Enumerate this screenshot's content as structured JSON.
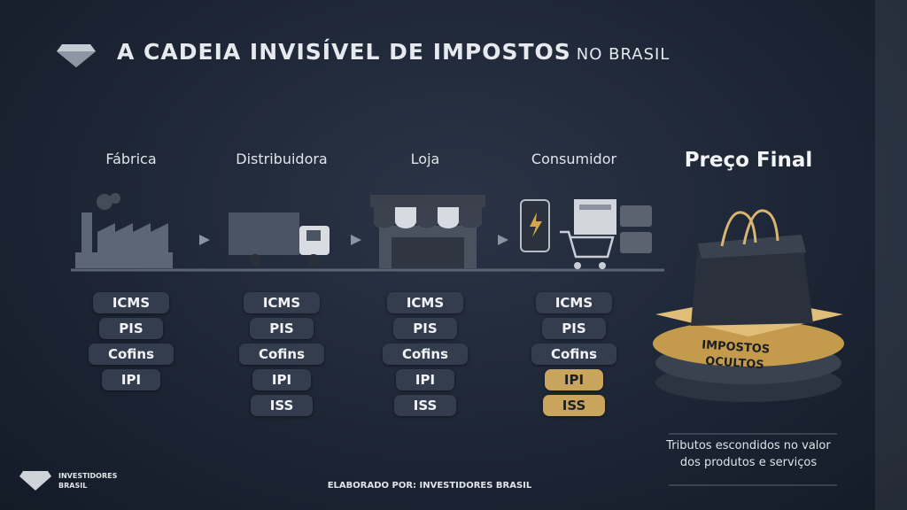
{
  "header": {
    "title_main": "A CADEIA INVISÍVEL DE IMPOSTOS",
    "title_suffix": "NO BRASIL"
  },
  "stages": [
    {
      "label": "Fábrica",
      "taxes": [
        "ICMS",
        "PIS",
        "Cofins",
        "IPI"
      ]
    },
    {
      "label": "Distribuidora",
      "taxes": [
        "ICMS",
        "PIS",
        "Cofins",
        "IPI",
        "ISS"
      ]
    },
    {
      "label": "Loja",
      "taxes": [
        "ICMS",
        "PIS",
        "Cofins",
        "IPI",
        "ISS"
      ]
    },
    {
      "label": "Consumidor",
      "taxes": [
        "ICMS",
        "PIS",
        "Cofins",
        "IPI",
        "ISS"
      ]
    }
  ],
  "final": {
    "label": "Preço Final",
    "badge": [
      "IMPOSTOS",
      "OCULTOS"
    ],
    "caption": [
      "Tributos escondidos no valor",
      "dos produtos e serviços"
    ]
  },
  "footer": {
    "logo_text": [
      "INVESTIDORES",
      "BRASIL"
    ],
    "credit": "ELABORADO POR: INVESTIDORES BRASIL"
  }
}
